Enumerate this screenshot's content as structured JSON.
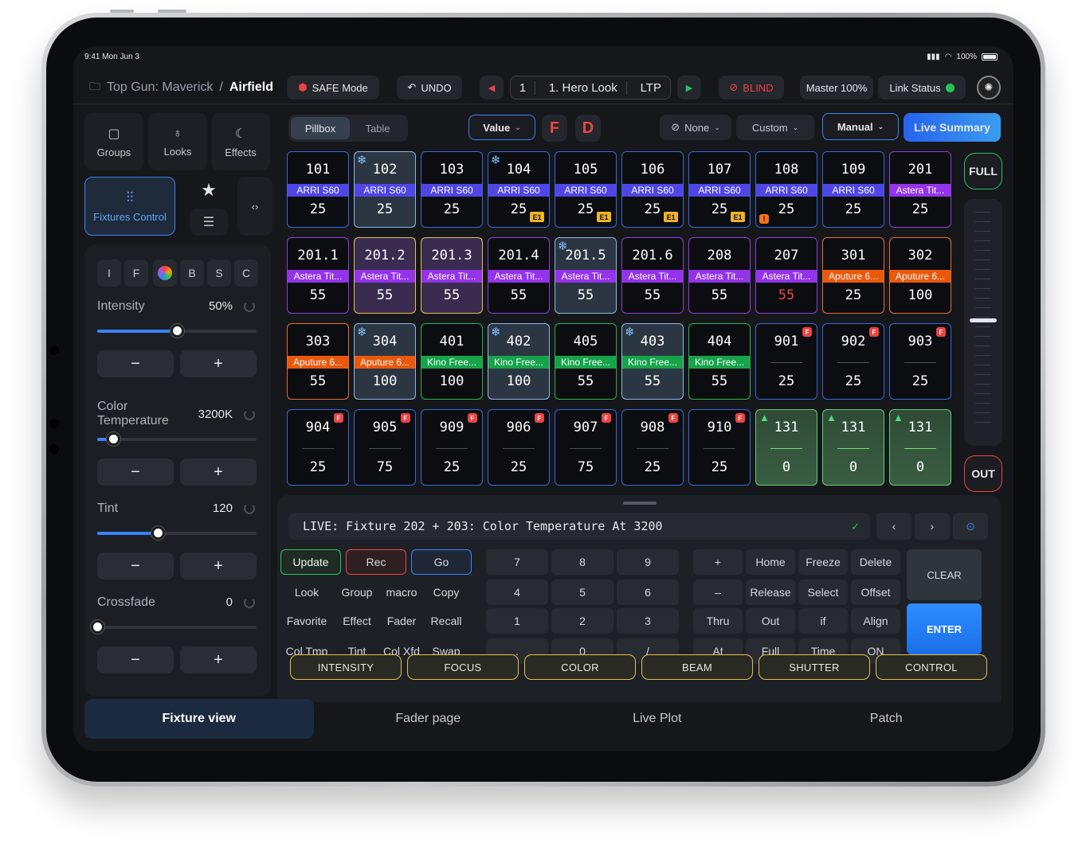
{
  "status": {
    "time": "9:41  Mon Jun 3",
    "battery": "100%"
  },
  "header": {
    "project": "Top Gun: Maverick",
    "separator": "/",
    "scene": "Airfield",
    "safe_mode": "SAFE Mode",
    "undo": "UNDO",
    "cue_number": "1",
    "cue_name": "1. Hero Look",
    "ltp": "LTP",
    "blind": "BLIND",
    "master": "Master 100%",
    "link_status": "Link Status"
  },
  "sidebar": {
    "tabs": [
      {
        "label": "Groups"
      },
      {
        "label": "Looks"
      },
      {
        "label": "Effects"
      },
      {
        "label": "Fixtures Control"
      }
    ]
  },
  "controls": {
    "modes": [
      "I",
      "F",
      "",
      "B",
      "S",
      "C"
    ],
    "params": [
      {
        "label": "Intensity",
        "value": "50%",
        "level": 0.5
      },
      {
        "label": "Color\nTemperature",
        "value": "3200K",
        "level": 0.1
      },
      {
        "label": "Tint",
        "value": "120",
        "level": 0.38
      },
      {
        "label": "Crossfade",
        "value": "0",
        "level": 0
      }
    ],
    "minus": "−",
    "plus": "+"
  },
  "toolbar": {
    "pillbox": "Pillbox",
    "table": "Table",
    "value": "Value",
    "f": "F",
    "d": "D",
    "none": "None",
    "custom": "Custom",
    "manual": "Manual",
    "live_summary": "Live Summary",
    "full": "FULL",
    "out": "OUT"
  },
  "fixtures": [
    {
      "num": "101",
      "label": "ARRI S60",
      "value": "25",
      "c": "#3a66d8",
      "lb": "#4f46e5"
    },
    {
      "num": "102",
      "label": "ARRI S60",
      "value": "25",
      "c": "#8fb5e8",
      "lb": "#4f46e5",
      "sel": 1,
      "snow": 1
    },
    {
      "num": "103",
      "label": "ARRI S60",
      "value": "25",
      "c": "#3a66d8",
      "lb": "#4f46e5"
    },
    {
      "num": "104",
      "label": "ARRI S60",
      "value": "25",
      "c": "#3a66d8",
      "lb": "#4f46e5",
      "snow": 1,
      "badge": "E1"
    },
    {
      "num": "105",
      "label": "ARRI S60",
      "value": "25",
      "c": "#3a66d8",
      "lb": "#4f46e5",
      "badge": "E1"
    },
    {
      "num": "106",
      "label": "ARRI S60",
      "value": "25",
      "c": "#3a66d8",
      "lb": "#4f46e5",
      "badge": "E1"
    },
    {
      "num": "107",
      "label": "ARRI S60",
      "value": "25",
      "c": "#3a66d8",
      "lb": "#4f46e5",
      "badge": "E1"
    },
    {
      "num": "108",
      "label": "ARRI S60",
      "value": "25",
      "c": "#3a66d8",
      "lb": "#4f46e5",
      "warn": "!"
    },
    {
      "num": "109",
      "label": "ARRI S60",
      "value": "25",
      "c": "#3a66d8",
      "lb": "#4f46e5"
    },
    {
      "num": "201",
      "label": "Astera Tit...",
      "value": "25",
      "c": "#8b3fd1",
      "lb": "#9333ea"
    },
    {
      "num": "201.1",
      "label": "Astera Tit...",
      "value": "55",
      "c": "#8b3fd1",
      "lb": "#9333ea"
    },
    {
      "num": "201.2",
      "label": "Astera Tit...",
      "value": "55",
      "c": "#e3c14a",
      "lb": "#9333ea",
      "bg": "#3a2c50"
    },
    {
      "num": "201.3",
      "label": "Astera Tit...",
      "value": "55",
      "c": "#e3c14a",
      "lb": "#9333ea",
      "bg": "#3a2c50"
    },
    {
      "num": "201.4",
      "label": "Astera Tit...",
      "value": "55",
      "c": "#8b3fd1",
      "lb": "#9333ea"
    },
    {
      "num": "201.5",
      "label": "Astera Tit...",
      "value": "55",
      "c": "#8fb5e8",
      "lb": "#9333ea",
      "sel": 1,
      "snow": 1
    },
    {
      "num": "201.6",
      "label": "Astera Tit...",
      "value": "55",
      "c": "#8b3fd1",
      "lb": "#9333ea"
    },
    {
      "num": "208",
      "label": "Astera Tit...",
      "value": "55",
      "c": "#8b3fd1",
      "lb": "#9333ea"
    },
    {
      "num": "207",
      "label": "Astera Tit...",
      "value": "55",
      "c": "#8b3fd1",
      "lb": "#9333ea",
      "red": 1
    },
    {
      "num": "301",
      "label": "Aputure 6...",
      "value": "25",
      "c": "#ea6a3a",
      "lb": "#ea580c"
    },
    {
      "num": "302",
      "label": "Aputure 6...",
      "value": "100",
      "c": "#ea6a3a",
      "lb": "#ea580c"
    },
    {
      "num": "303",
      "label": "Aputure 6...",
      "value": "55",
      "c": "#ea6a3a",
      "lb": "#ea580c"
    },
    {
      "num": "304",
      "label": "Aputure 6...",
      "value": "100",
      "c": "#8fb5e8",
      "lb": "#ea580c",
      "sel": 1,
      "snow": 1
    },
    {
      "num": "401",
      "label": "Kino Free...",
      "value": "100",
      "c": "#2fb24a",
      "lb": "#16a34a"
    },
    {
      "num": "402",
      "label": "Kino Free...",
      "value": "100",
      "c": "#8fb5e8",
      "lb": "#16a34a",
      "sel": 1,
      "snow": 1
    },
    {
      "num": "405",
      "label": "Kino Free...",
      "value": "55",
      "c": "#2fb24a",
      "lb": "#16a34a"
    },
    {
      "num": "403",
      "label": "Kino Free...",
      "value": "55",
      "c": "#8fb5e8",
      "lb": "#16a34a",
      "sel": 1,
      "snow": 1
    },
    {
      "num": "404",
      "label": "Kino Free...",
      "value": "55",
      "c": "#2fb24a",
      "lb": "#16a34a"
    },
    {
      "num": "901",
      "label": "",
      "value": "25",
      "c": "#3a66d8",
      "f": "F"
    },
    {
      "num": "902",
      "label": "",
      "value": "25",
      "c": "#3a66d8",
      "f": "F"
    },
    {
      "num": "903",
      "label": "",
      "value": "25",
      "c": "#3a66d8",
      "f": "F"
    },
    {
      "num": "904",
      "label": "",
      "value": "25",
      "c": "#3a66d8",
      "f": "F"
    },
    {
      "num": "905",
      "label": "",
      "value": "75",
      "c": "#3a66d8",
      "f": "F"
    },
    {
      "num": "909",
      "label": "",
      "value": "25",
      "c": "#3a66d8",
      "f": "F"
    },
    {
      "num": "906",
      "label": "",
      "value": "25",
      "c": "#3a66d8",
      "f": "F"
    },
    {
      "num": "907",
      "label": "",
      "value": "75",
      "c": "#3a66d8",
      "f": "F"
    },
    {
      "num": "908",
      "label": "",
      "value": "25",
      "c": "#3a66d8",
      "f": "F"
    },
    {
      "num": "910",
      "label": "",
      "value": "25",
      "c": "#3a66d8",
      "f": "F"
    },
    {
      "num": "131",
      "label": "",
      "value": "0",
      "c": "#5fcf6e",
      "green": 1,
      "tree": 1
    },
    {
      "num": "131",
      "label": "",
      "value": "0",
      "c": "#5fcf6e",
      "green": 1,
      "tree": 1
    },
    {
      "num": "131",
      "label": "",
      "value": "0",
      "c": "#5fcf6e",
      "green": 1,
      "tree": 1
    }
  ],
  "command": {
    "line": "LIVE: Fixture 202 + 203: Color Temperature At 3200",
    "keys": [
      [
        "Update",
        "Rec",
        "Go",
        "7",
        "8",
        "9",
        "+",
        "Home",
        "Freeze",
        "Delete"
      ],
      [
        "Look",
        "Group",
        "macro",
        "Copy",
        "4",
        "5",
        "6",
        "–",
        "Release",
        "Select",
        "Offset"
      ],
      [
        "Favorite",
        "Effect",
        "Fader",
        "Recall",
        "1",
        "2",
        "3",
        "Thru",
        "Out",
        "if",
        "Align"
      ],
      [
        "Col Tmp",
        "Tint",
        "Col Xfd",
        "Swap",
        ".",
        "0",
        "/",
        "At",
        "Full",
        "Time",
        "ON"
      ]
    ],
    "clear": "CLEAR",
    "enter": "ENTER",
    "categories": [
      "INTENSITY",
      "FOCUS",
      "COLOR",
      "BEAM",
      "SHUTTER",
      "CONTROL"
    ]
  },
  "nav": [
    "Fixture view",
    "Fader page",
    "Live Plot",
    "Patch"
  ]
}
